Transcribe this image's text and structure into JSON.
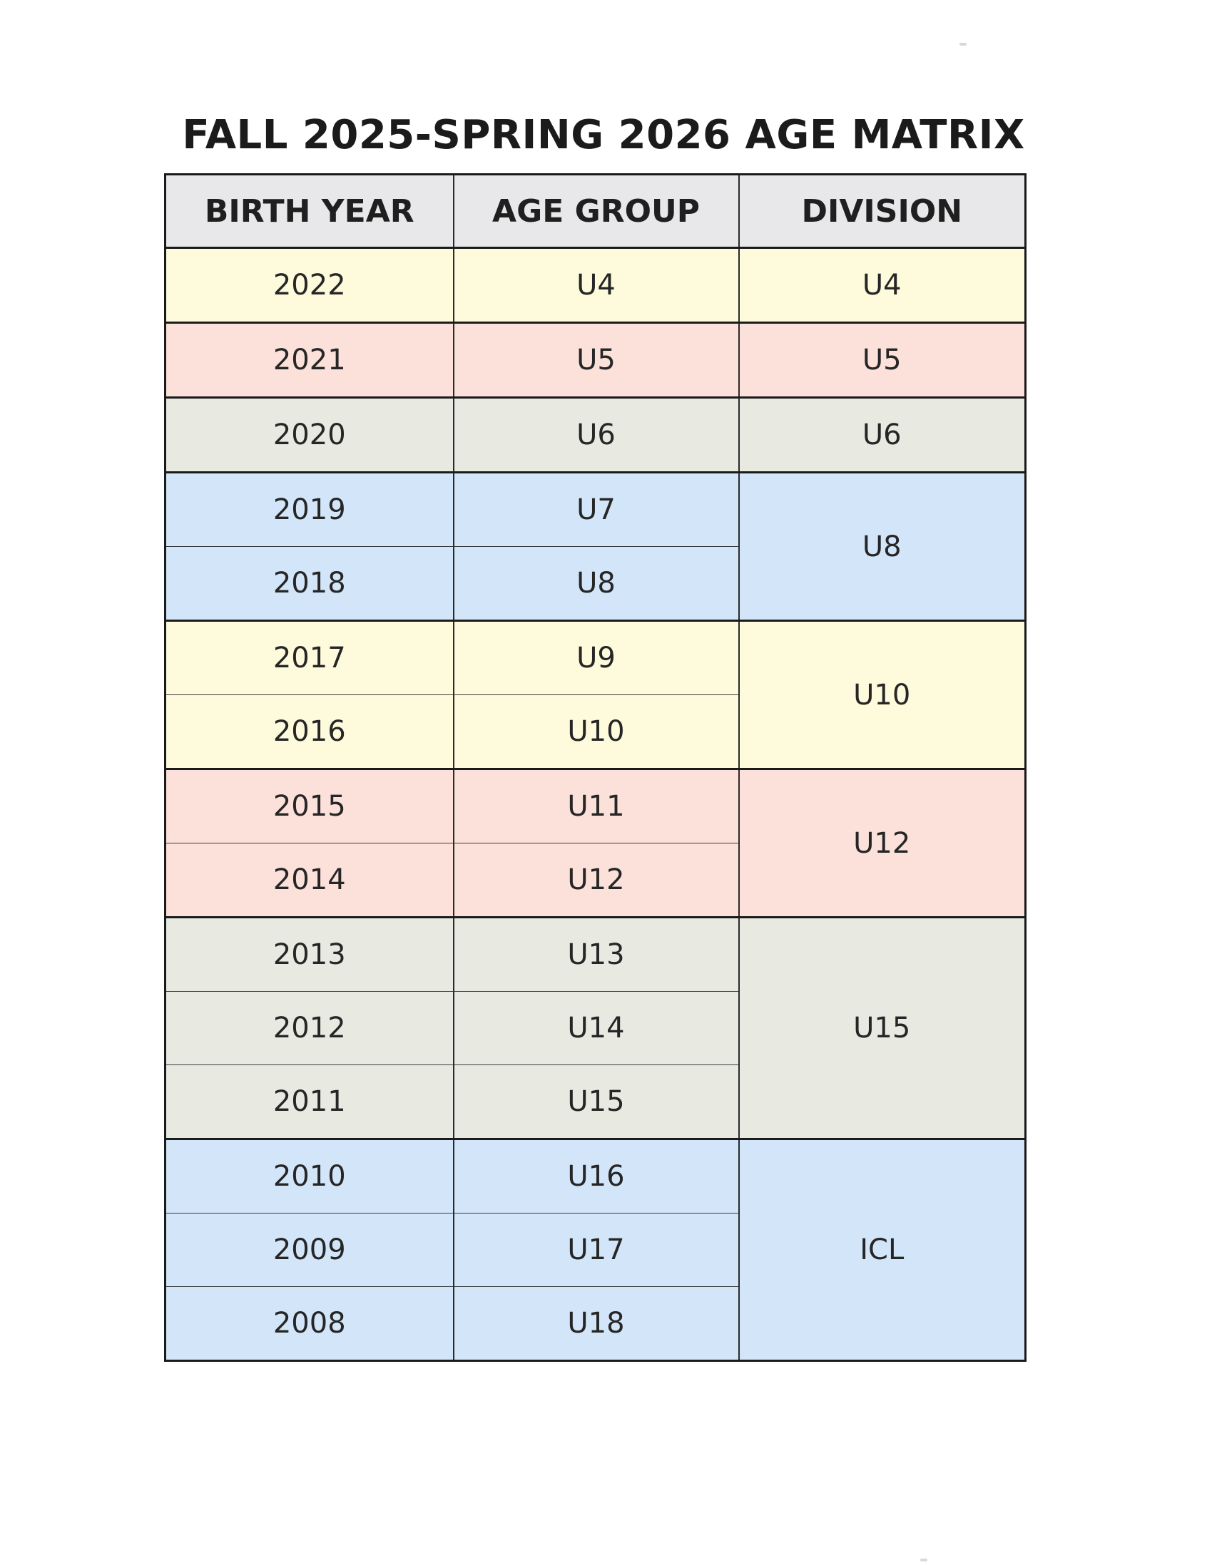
{
  "title": "FALL 2025-SPRING 2026 AGE MATRIX",
  "headers": {
    "birth_year": "BIRTH YEAR",
    "age_group": "AGE GROUP",
    "division": "DIVISION"
  },
  "rows": [
    {
      "birth_year": "2022",
      "age_group": "U4"
    },
    {
      "birth_year": "2021",
      "age_group": "U5"
    },
    {
      "birth_year": "2020",
      "age_group": "U6"
    },
    {
      "birth_year": "2019",
      "age_group": "U7"
    },
    {
      "birth_year": "2018",
      "age_group": "U8"
    },
    {
      "birth_year": "2017",
      "age_group": "U9"
    },
    {
      "birth_year": "2016",
      "age_group": "U10"
    },
    {
      "birth_year": "2015",
      "age_group": "U11"
    },
    {
      "birth_year": "2014",
      "age_group": "U12"
    },
    {
      "birth_year": "2013",
      "age_group": "U13"
    },
    {
      "birth_year": "2012",
      "age_group": "U14"
    },
    {
      "birth_year": "2011",
      "age_group": "U15"
    },
    {
      "birth_year": "2010",
      "age_group": "U16"
    },
    {
      "birth_year": "2009",
      "age_group": "U17"
    },
    {
      "birth_year": "2008",
      "age_group": "U18"
    }
  ],
  "divisions": [
    {
      "label": "U4",
      "row_count": 1,
      "color": "#fdfbdc"
    },
    {
      "label": "U5",
      "row_count": 1,
      "color": "#fbe1d9"
    },
    {
      "label": "U6",
      "row_count": 1,
      "color": "#e8eae2"
    },
    {
      "label": "U8",
      "row_count": 2,
      "color": "#d3e6f9"
    },
    {
      "label": "U10",
      "row_count": 2,
      "color": "#fdfbdc"
    },
    {
      "label": "U12",
      "row_count": 2,
      "color": "#fbe1d9"
    },
    {
      "label": "U15",
      "row_count": 3,
      "color": "#e8eae2"
    },
    {
      "label": "ICL",
      "row_count": 3,
      "color": "#d3e6f9"
    }
  ],
  "colors": {
    "header_bg": "#e8e8ea",
    "yellow": "#fdfbdc",
    "pink": "#fbe1d9",
    "green": "#e8eae2",
    "blue": "#d3e6f9",
    "border": "#1a1a1a"
  }
}
